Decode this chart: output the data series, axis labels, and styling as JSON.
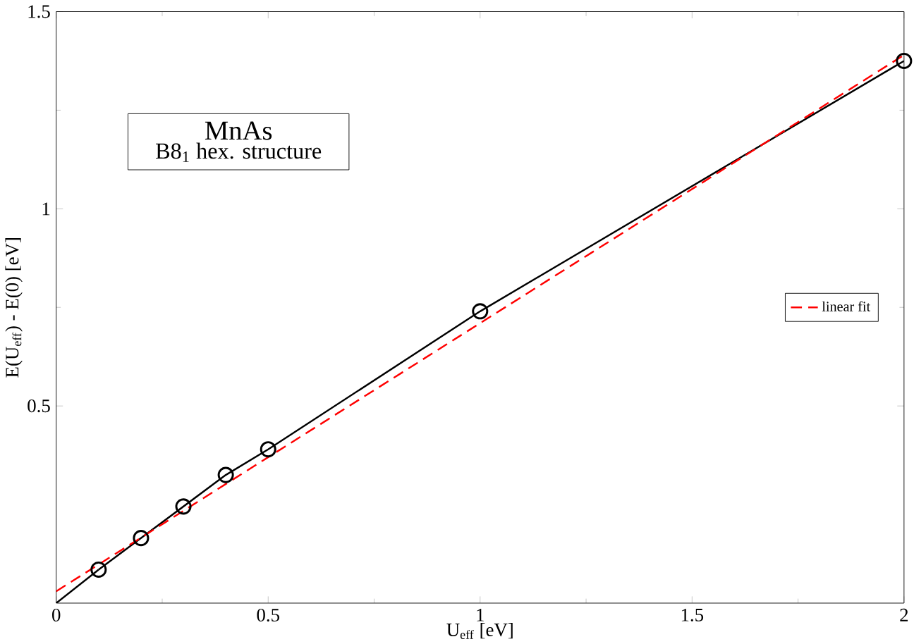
{
  "chart_data": {
    "type": "line",
    "xlabel": "U$_{eff}$  [eV]",
    "ylabel": "E(U$_{eff}$) - E(0)   [eV]",
    "annotations": [
      "MnAs",
      "B8$_{1}$ hex. structure"
    ],
    "xlim": [
      0,
      2
    ],
    "ylim": [
      0,
      1.5
    ],
    "xticks": [
      0,
      0.5,
      1,
      1.5,
      2
    ],
    "yticks": [
      0.5,
      1,
      1.5
    ],
    "legend": "right",
    "grid": false,
    "series": [
      {
        "color": "#000000",
        "marker": "circle",
        "x": [
          0.1,
          0.2,
          0.3,
          0.4,
          0.5,
          1.0,
          2.0
        ],
        "values": [
          0.085,
          0.165,
          0.245,
          0.325,
          0.39,
          0.74,
          1.375
        ]
      },
      {
        "color": "#000000",
        "marker": "none",
        "x": [
          0,
          0.1
        ],
        "values": [
          0,
          0.085
        ]
      },
      {
        "name": "linear fit",
        "color": "#ff0000",
        "marker": "none",
        "line_style": "dashed",
        "x": [
          0,
          2
        ],
        "values": [
          0.03,
          1.39
        ]
      }
    ]
  }
}
